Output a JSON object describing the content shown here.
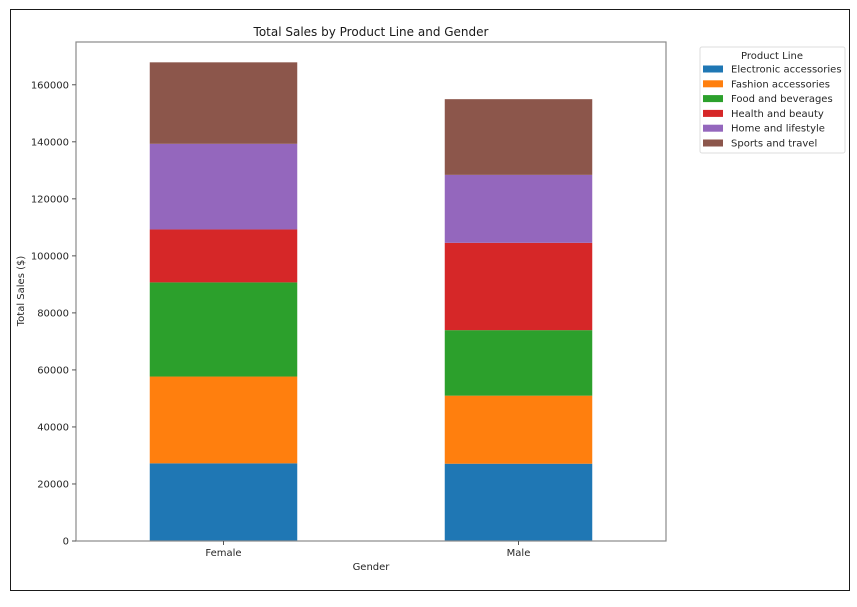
{
  "chart_data": {
    "type": "bar",
    "stacked": true,
    "title": "Total Sales by Product Line and Gender",
    "xlabel": "Gender",
    "ylabel": "Total Sales ($)",
    "categories": [
      "Female",
      "Male"
    ],
    "ylim": [
      0,
      175000
    ],
    "yticks": [
      0,
      20000,
      40000,
      60000,
      80000,
      100000,
      120000,
      140000,
      160000
    ],
    "ytick_labels": [
      "0",
      "20000",
      "40000",
      "60000",
      "80000",
      "100000",
      "120000",
      "140000",
      "160000"
    ],
    "grid": false,
    "legend": {
      "title": "Product Line",
      "placement": "outside-top-right"
    },
    "series": [
      {
        "name": "Electronic accessories",
        "color": "#1f77b4",
        "values": [
          27235,
          27103
        ]
      },
      {
        "name": "Fashion accessories",
        "color": "#ff7f0e",
        "values": [
          30437,
          23868
        ]
      },
      {
        "name": "Food and beverages",
        "color": "#2ca02c",
        "values": [
          33025,
          22973
        ]
      },
      {
        "name": "Health and beauty",
        "color": "#d62728",
        "values": [
          18561,
          30632
        ]
      },
      {
        "name": "Home and lifestyle",
        "color": "#9467bd",
        "values": [
          30037,
          23825
        ]
      },
      {
        "name": "Sports and travel",
        "color": "#8c564b",
        "values": [
          28575,
          26548
        ]
      }
    ]
  }
}
